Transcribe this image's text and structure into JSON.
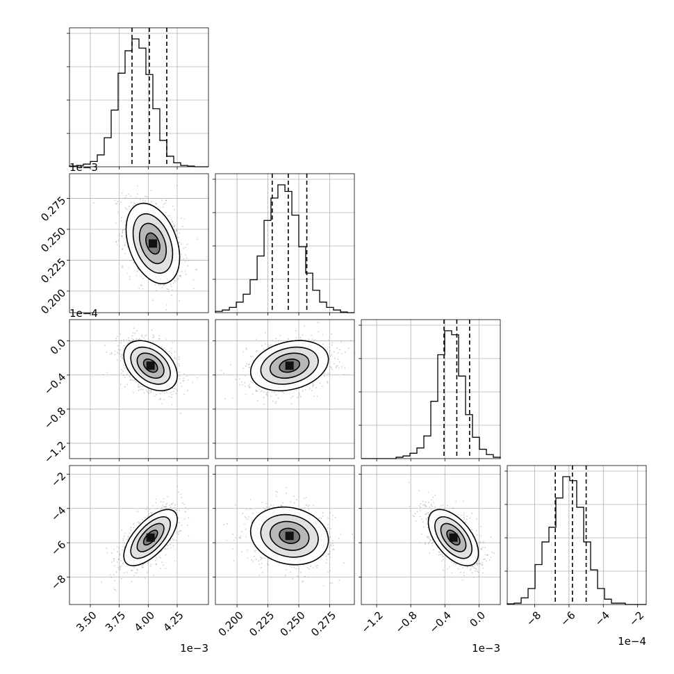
{
  "chart_data": {
    "type": "corner",
    "parameters": [
      {
        "range": [
          3.32,
          4.52
        ],
        "offset_label": "",
        "ticks": [],
        "tick_labels": []
      },
      {
        "range": [
          0.1825,
          0.295
        ],
        "offset_label": "1e−3",
        "ticks": [
          0.2,
          0.225,
          0.25,
          0.275
        ],
        "tick_labels": [
          "0.200",
          "0.225",
          "0.250",
          "0.275"
        ]
      },
      {
        "range": [
          -1.38,
          0.25
        ],
        "offset_label": "1e−4",
        "ticks": [
          -1.2,
          -0.8,
          -0.4,
          0.0
        ],
        "tick_labels": [
          "−1.2",
          "−0.8",
          "−0.4",
          "0.0"
        ]
      },
      {
        "range": [
          -9.6,
          -1.5
        ],
        "offset_label": "",
        "ticks": [
          -8,
          -6,
          -4,
          -2
        ],
        "tick_labels": [
          "−8",
          "−6",
          "−4",
          "−2"
        ]
      }
    ],
    "bottom_axes": [
      {
        "ticks": [
          3.5,
          3.75,
          4.0,
          4.25
        ],
        "tick_labels": [
          "3.50",
          "3.75",
          "4.00",
          "4.25"
        ],
        "offset_label": "1e−3"
      },
      {
        "ticks": [
          0.2,
          0.225,
          0.25,
          0.275
        ],
        "tick_labels": [
          "0.200",
          "0.225",
          "0.250",
          "0.275"
        ],
        "offset_label": ""
      },
      {
        "ticks": [
          -1.2,
          -0.8,
          -0.4,
          0.0
        ],
        "tick_labels": [
          "−1.2",
          "−0.8",
          "−0.4",
          "0.0"
        ],
        "offset_label": "1e−3"
      },
      {
        "ticks": [
          -8,
          -6,
          -4,
          -2
        ],
        "tick_labels": [
          "−8",
          "−6",
          "−4",
          "−2"
        ],
        "offset_label": "1e−4"
      }
    ],
    "marginals": [
      {
        "bins": [
          3.32,
          3.38,
          3.44,
          3.5,
          3.56,
          3.62,
          3.68,
          3.74,
          3.8,
          3.86,
          3.92,
          3.98,
          4.04,
          4.1,
          4.16,
          4.22,
          4.28,
          4.34,
          4.4,
          4.46,
          4.52
        ],
        "counts": [
          0.005,
          0.01,
          0.02,
          0.04,
          0.09,
          0.22,
          0.43,
          0.71,
          0.88,
          0.97,
          0.9,
          0.7,
          0.44,
          0.2,
          0.08,
          0.03,
          0.01,
          0.005,
          0,
          0
        ],
        "quantiles": [
          3.86,
          4.01,
          4.16
        ]
      },
      {
        "bins": [
          0.1825,
          0.1881,
          0.1938,
          0.1994,
          0.205,
          0.2106,
          0.2163,
          0.2219,
          0.2275,
          0.2331,
          0.2388,
          0.2444,
          0.25,
          0.2556,
          0.2613,
          0.2669,
          0.2725,
          0.2781,
          0.2838,
          0.2894,
          0.295
        ],
        "counts": [
          0.01,
          0.02,
          0.04,
          0.08,
          0.14,
          0.25,
          0.43,
          0.7,
          0.87,
          0.97,
          0.92,
          0.74,
          0.5,
          0.3,
          0.17,
          0.08,
          0.04,
          0.02,
          0.005,
          0
        ],
        "quantiles": [
          0.2285,
          0.2415,
          0.2565
        ]
      },
      {
        "bins": [
          -1.38,
          -1.2985,
          -1.217,
          -1.1355,
          -1.054,
          -0.9725,
          -0.891,
          -0.8095,
          -0.728,
          -0.6465,
          -0.565,
          -0.4835,
          -0.402,
          -0.3205,
          -0.239,
          -0.1575,
          -0.076,
          0.0055,
          0.087,
          0.1685,
          0.25
        ],
        "counts": [
          0,
          0,
          0,
          0,
          0,
          0.01,
          0.02,
          0.04,
          0.08,
          0.17,
          0.43,
          0.78,
          0.96,
          0.93,
          0.62,
          0.33,
          0.16,
          0.07,
          0.03,
          0.01
        ],
        "quantiles": [
          -0.41,
          -0.26,
          -0.11
        ]
      },
      {
        "bins": [
          -9.6,
          -9.195,
          -8.79,
          -8.385,
          -7.98,
          -7.575,
          -7.17,
          -6.765,
          -6.36,
          -5.955,
          -5.55,
          -5.145,
          -4.74,
          -4.335,
          -3.93,
          -3.525,
          -3.12,
          -2.715,
          -2.31,
          -1.905,
          -1.5
        ],
        "counts": [
          0.005,
          0.01,
          0.05,
          0.12,
          0.3,
          0.47,
          0.58,
          0.8,
          0.96,
          0.93,
          0.73,
          0.47,
          0.26,
          0.12,
          0.04,
          0.01,
          0.01,
          0,
          0,
          0
        ],
        "quantiles": [
          -6.8,
          -5.8,
          -5.0
        ]
      }
    ],
    "pairs": [
      {
        "x": 0,
        "y": 1,
        "center": [
          4.04,
          0.2385
        ],
        "sx": 0.11,
        "sy": 0.0155,
        "rho": -0.35
      },
      {
        "x": 0,
        "y": 2,
        "center": [
          4.02,
          -0.29
        ],
        "sx": 0.11,
        "sy": 0.14,
        "rho": -0.4
      },
      {
        "x": 1,
        "y": 2,
        "center": [
          0.2425,
          -0.29
        ],
        "sx": 0.015,
        "sy": 0.14,
        "rho": 0.25
      },
      {
        "x": 0,
        "y": 3,
        "center": [
          4.02,
          -5.7
        ],
        "sx": 0.11,
        "sy": 0.78,
        "rho": 0.65
      },
      {
        "x": 1,
        "y": 3,
        "center": [
          0.2425,
          -5.6
        ],
        "sx": 0.015,
        "sy": 0.8,
        "rho": -0.15
      },
      {
        "x": 2,
        "y": 3,
        "center": [
          -0.3,
          -5.7
        ],
        "sx": 0.14,
        "sy": 0.78,
        "rho": -0.55
      }
    ],
    "grid": true
  }
}
